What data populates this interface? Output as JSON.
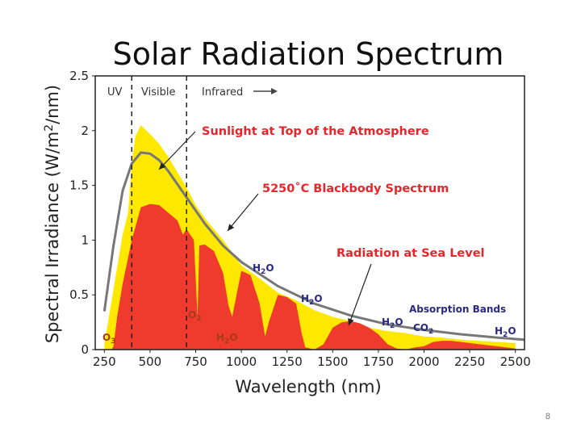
{
  "chart_data": {
    "type": "area",
    "title": "Solar Radiation Spectrum",
    "xlabel": "Wavelength (nm)",
    "ylabel_parts": [
      "Spectral Irradiance (W/m",
      "2",
      "/nm)"
    ],
    "xlim": [
      200,
      2550
    ],
    "ylim": [
      0,
      2.5
    ],
    "x_ticks": [
      "250",
      "500",
      "750",
      "1000",
      "1250",
      "1500",
      "1750",
      "2000",
      "2250",
      "2500"
    ],
    "y_ticks": [
      "0",
      "0.5",
      "1",
      "1.5",
      "2",
      "2.5"
    ],
    "regions": [
      {
        "label": "UV",
        "boundary": 400
      },
      {
        "label": "Visible",
        "boundary": 700
      },
      {
        "label": "Infrared"
      }
    ],
    "series": [
      {
        "name": "Sunlight at Top of the Atmosphere",
        "color": "#ffe800",
        "x": [
          250,
          300,
          350,
          380,
          400,
          420,
          450,
          480,
          500,
          550,
          600,
          650,
          700,
          750,
          800,
          850,
          900,
          1000,
          1100,
          1200,
          1300,
          1400,
          1500,
          1600,
          1700,
          1800,
          1900,
          2000,
          2100,
          2200,
          2300,
          2400,
          2500
        ],
        "y": [
          0.05,
          0.55,
          1.05,
          1.25,
          1.7,
          1.95,
          2.05,
          2.0,
          1.97,
          1.88,
          1.76,
          1.62,
          1.48,
          1.32,
          1.2,
          1.1,
          1.0,
          0.77,
          0.65,
          0.52,
          0.45,
          0.36,
          0.3,
          0.26,
          0.2,
          0.17,
          0.15,
          0.12,
          0.11,
          0.09,
          0.08,
          0.07,
          0.06
        ]
      },
      {
        "name": "5250˚C Blackbody Spectrum",
        "color": "#777777",
        "x": [
          250,
          300,
          350,
          400,
          450,
          500,
          550,
          600,
          700,
          800,
          900,
          1000,
          1200,
          1400,
          1600,
          1800,
          2000,
          2200,
          2400,
          2550
        ],
        "y": [
          0.35,
          0.95,
          1.45,
          1.7,
          1.8,
          1.79,
          1.73,
          1.63,
          1.39,
          1.15,
          0.95,
          0.8,
          0.58,
          0.42,
          0.31,
          0.23,
          0.18,
          0.14,
          0.11,
          0.09
        ]
      },
      {
        "name": "Radiation at Sea Level",
        "color": "#ef3b2e",
        "x": [
          250,
          290,
          300,
          320,
          350,
          400,
          450,
          500,
          550,
          600,
          650,
          680,
          700,
          720,
          740,
          760,
          770,
          800,
          850,
          900,
          930,
          950,
          1000,
          1050,
          1100,
          1130,
          1150,
          1200,
          1250,
          1300,
          1330,
          1350,
          1400,
          1450,
          1500,
          1550,
          1600,
          1650,
          1700,
          1750,
          1800,
          1850,
          1900,
          1950,
          2000,
          2050,
          2100,
          2150,
          2200,
          2250,
          2300,
          2350,
          2400,
          2450,
          2500
        ],
        "y": [
          0,
          0,
          0.03,
          0.3,
          0.6,
          1.0,
          1.3,
          1.33,
          1.32,
          1.25,
          1.18,
          1.05,
          1.1,
          1.05,
          1.0,
          0.3,
          0.95,
          0.96,
          0.9,
          0.7,
          0.4,
          0.3,
          0.72,
          0.68,
          0.42,
          0.12,
          0.25,
          0.5,
          0.48,
          0.42,
          0.15,
          0.02,
          0.0,
          0.05,
          0.2,
          0.25,
          0.26,
          0.24,
          0.2,
          0.14,
          0.05,
          0.01,
          0.0,
          0.02,
          0.03,
          0.07,
          0.08,
          0.08,
          0.07,
          0.06,
          0.05,
          0.04,
          0.03,
          0.02,
          0.01
        ]
      }
    ],
    "annotations": [
      {
        "text": "Sunlight at Top of the Atmosphere",
        "style": "red"
      },
      {
        "text": "5250˚C Blackbody Spectrum",
        "style": "red"
      },
      {
        "text": "Radiation at Sea Level",
        "style": "red"
      },
      {
        "text": "Absorption Bands",
        "style": "blue"
      }
    ],
    "absorption_labels": [
      {
        "label": "O3",
        "main": "O",
        "sub": "3",
        "style": "dark"
      },
      {
        "label": "O2",
        "main": "O",
        "sub": "2",
        "style": "dark"
      },
      {
        "label": "H2O",
        "main": "H",
        "sub": "2",
        "tail": "O",
        "style": "dark"
      },
      {
        "label": "H2O",
        "main": "H",
        "sub": "2",
        "tail": "O",
        "style": "blue"
      },
      {
        "label": "H2O",
        "main": "H",
        "sub": "2",
        "tail": "O",
        "style": "blue"
      },
      {
        "label": "H2O",
        "main": "H",
        "sub": "2",
        "tail": "O",
        "style": "blue"
      },
      {
        "label": "CO2",
        "main": "CO",
        "sub": "2",
        "style": "blue"
      },
      {
        "label": "H2O",
        "main": "H",
        "sub": "2",
        "tail": "O",
        "style": "blue"
      }
    ]
  },
  "slide": {
    "page_number": "8"
  }
}
